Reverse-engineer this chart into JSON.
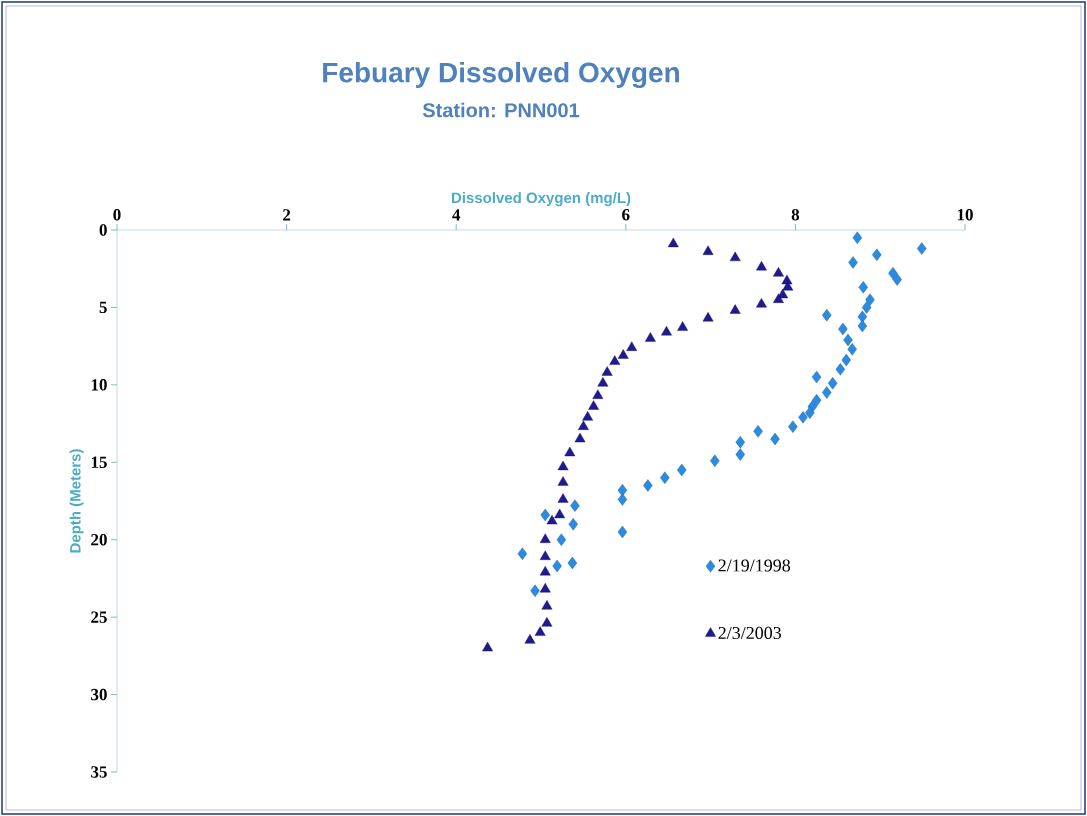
{
  "chart_data": {
    "type": "scatter",
    "title": "Febuary Dissolved Oxygen",
    "subtitle": "Station: PNN001",
    "xlabel": "Dissolved Oxygen (mg/L)",
    "ylabel": "Depth (Meters)",
    "xlim": [
      0,
      10
    ],
    "xticks": [
      0,
      2,
      4,
      6,
      8,
      10
    ],
    "ylim": [
      35,
      0
    ],
    "yticks": [
      0,
      5,
      10,
      15,
      20,
      25,
      30,
      35
    ],
    "grid": false,
    "legend": "right",
    "series": [
      {
        "name": "2/19/1998",
        "color": "#2b8be0",
        "marker": "diamond",
        "x": [
          8.73,
          9.49,
          8.96,
          8.68,
          9.15,
          9.2,
          8.8,
          8.88,
          8.84,
          8.79,
          8.37,
          8.79,
          8.56,
          8.62,
          8.67,
          8.6,
          8.53,
          8.25,
          8.44,
          8.37,
          8.25,
          8.2,
          8.09,
          8.17,
          7.97,
          7.76,
          7.56,
          7.35,
          7.35,
          7.05,
          6.66,
          6.46,
          6.26,
          5.96,
          5.96,
          5.96,
          5.05,
          5.4,
          5.38,
          5.24,
          4.78,
          5.37,
          5.19,
          4.93
        ],
        "values": [
          0.5,
          1.2,
          1.6,
          2.1,
          2.8,
          3.2,
          3.7,
          4.5,
          5.0,
          5.6,
          5.5,
          6.2,
          6.4,
          7.1,
          7.7,
          8.4,
          9.0,
          9.5,
          9.9,
          10.5,
          11.0,
          11.4,
          12.1,
          11.8,
          12.7,
          13.5,
          13.0,
          13.7,
          14.5,
          14.9,
          15.5,
          16.0,
          16.5,
          16.8,
          17.4,
          19.5,
          18.4,
          17.8,
          19.0,
          20.0,
          20.9,
          21.5,
          21.7,
          23.3
        ]
      },
      {
        "name": "2/3/2003",
        "color": "#1f1a8f",
        "marker": "triangle",
        "x": [
          6.56,
          6.97,
          7.29,
          7.6,
          7.8,
          7.9,
          7.91,
          7.85,
          7.8,
          7.6,
          7.29,
          6.97,
          6.67,
          6.48,
          6.29,
          6.07,
          5.97,
          5.87,
          5.78,
          5.73,
          5.67,
          5.62,
          5.55,
          5.5,
          5.46,
          5.34,
          5.26,
          5.26,
          5.26,
          5.22,
          5.13,
          5.05,
          5.05,
          5.05,
          5.05,
          5.07,
          5.07,
          4.99,
          4.87,
          4.37
        ],
        "values": [
          0.9,
          1.4,
          1.8,
          2.4,
          2.8,
          3.3,
          3.7,
          4.2,
          4.5,
          4.8,
          5.2,
          5.7,
          6.3,
          6.6,
          7.0,
          7.6,
          8.1,
          8.5,
          9.2,
          9.9,
          10.7,
          11.4,
          12.1,
          12.7,
          13.5,
          14.4,
          15.3,
          16.3,
          17.4,
          18.4,
          18.8,
          20.0,
          21.1,
          22.1,
          23.2,
          24.3,
          25.4,
          26.0,
          26.5,
          27.0
        ]
      }
    ]
  }
}
